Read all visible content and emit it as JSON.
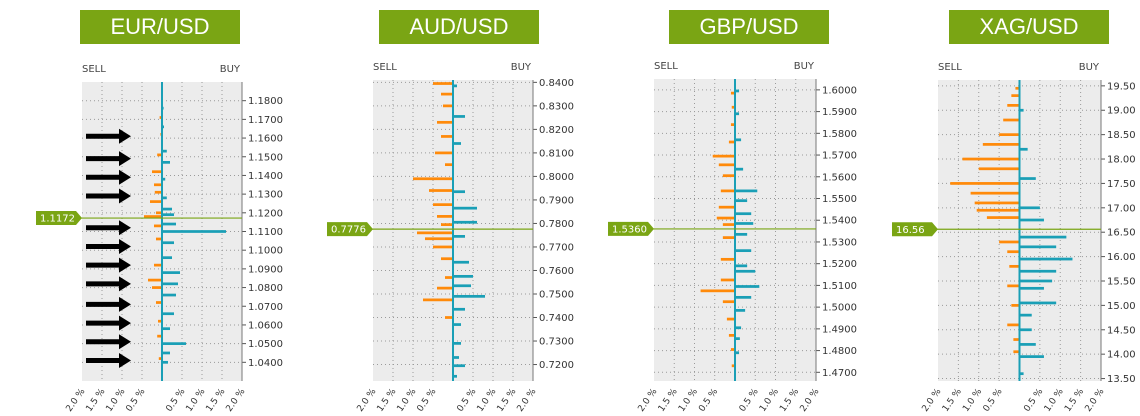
{
  "colors": {
    "buy": "#1a9fb6",
    "sell": "#ff8a0a",
    "title_bg": "#7aa514",
    "price_line": "#7aa514",
    "plot_bg": "#ececec"
  },
  "chart_data": [
    {
      "type": "bar",
      "title": "EUR/USD",
      "sell_label": "SELL",
      "buy_label": "BUY",
      "current_price": 1.1172,
      "current_price_label": "1.1172",
      "x_ticks": [
        "2.0 %",
        "1.5 %",
        "1.0 %",
        "0.5 %",
        "",
        "0.5 %",
        "1.0 %",
        "1.5 %",
        "2.0 %"
      ],
      "xlim": [
        -2.0,
        2.0
      ],
      "ylim": [
        1.03,
        1.19
      ],
      "y_ticks": [
        1.18,
        1.17,
        1.16,
        1.15,
        1.14,
        1.13,
        1.12,
        1.11,
        1.1,
        1.09,
        1.08,
        1.07,
        1.06,
        1.05,
        1.04
      ],
      "y_tick_labels": [
        "1.1800",
        "1.1700",
        "1.1600",
        "1.1500",
        "1.1400",
        "1.1300",
        "1.1200",
        "1.1100",
        "1.1000",
        "1.0900",
        "1.0800",
        "1.0700",
        "1.0600",
        "1.0500",
        "1.0400"
      ],
      "grid": true,
      "annotations": [
        "arrows pointing at support/resistance levels"
      ],
      "arrow_levels": [
        1.161,
        1.149,
        1.139,
        1.129,
        1.112,
        1.102,
        1.092,
        1.082,
        1.071,
        1.061,
        1.051,
        1.041
      ],
      "series": [
        {
          "side": "sell",
          "bars": [
            [
              1.171,
              0.06
            ],
            [
              1.162,
              0.04
            ],
            [
              1.151,
              0.12
            ],
            [
              1.142,
              0.25
            ],
            [
              1.135,
              0.2
            ],
            [
              1.131,
              0.18
            ],
            [
              1.126,
              0.3
            ],
            [
              1.12,
              0.15
            ],
            [
              1.118,
              0.45
            ]
          ]
        },
        {
          "side": "buy",
          "bars": [
            [
              1.176,
              0.04
            ],
            [
              1.166,
              0.05
            ],
            [
              1.153,
              0.12
            ],
            [
              1.147,
              0.2
            ],
            [
              1.138,
              0.08
            ],
            [
              1.128,
              0.12
            ],
            [
              1.122,
              0.25
            ],
            [
              1.119,
              0.3
            ]
          ]
        },
        {
          "side": "buy",
          "bars": [
            [
              1.114,
              0.35
            ],
            [
              1.11,
              1.6
            ],
            [
              1.104,
              0.3
            ],
            [
              1.096,
              0.25
            ],
            [
              1.088,
              0.45
            ],
            [
              1.082,
              0.4
            ],
            [
              1.076,
              0.35
            ],
            [
              1.066,
              0.3
            ],
            [
              1.058,
              0.2
            ],
            [
              1.05,
              0.6
            ],
            [
              1.045,
              0.2
            ],
            [
              1.04,
              0.15
            ]
          ]
        },
        {
          "side": "sell",
          "bars": [
            [
              1.113,
              0.2
            ],
            [
              1.106,
              0.15
            ],
            [
              1.092,
              0.2
            ],
            [
              1.084,
              0.35
            ],
            [
              1.08,
              0.25
            ],
            [
              1.072,
              0.15
            ],
            [
              1.062,
              0.1
            ],
            [
              1.054,
              0.12
            ],
            [
              1.042,
              0.08
            ]
          ]
        }
      ]
    },
    {
      "type": "bar",
      "title": "AUD/USD",
      "sell_label": "SELL",
      "buy_label": "BUY",
      "current_price": 0.7776,
      "current_price_label": "0.7776",
      "x_ticks": [
        "2.0 %",
        "1.5 %",
        "1.0 %",
        "0.5 %",
        "",
        "0.5 %",
        "1.0 %",
        "1.5 %",
        "2.0 %"
      ],
      "xlim": [
        -2.0,
        2.0
      ],
      "ylim": [
        0.713,
        0.841
      ],
      "y_ticks": [
        0.84,
        0.83,
        0.82,
        0.81,
        0.8,
        0.79,
        0.78,
        0.77,
        0.76,
        0.75,
        0.74,
        0.73,
        0.72
      ],
      "y_tick_labels": [
        "0.8400",
        "0.8300",
        "0.8200",
        "0.8100",
        "0.8000",
        "0.7900",
        "0.7800",
        "0.7700",
        "0.7600",
        "0.7500",
        "0.7400",
        "0.7300",
        "0.7200"
      ],
      "grid": true,
      "series": [
        {
          "side": "sell",
          "bars": [
            [
              0.8395,
              0.5
            ],
            [
              0.835,
              0.3
            ],
            [
              0.83,
              0.25
            ],
            [
              0.823,
              0.4
            ],
            [
              0.817,
              0.3
            ],
            [
              0.81,
              0.45
            ],
            [
              0.805,
              0.2
            ],
            [
              0.799,
              1.0
            ],
            [
              0.794,
              0.6
            ],
            [
              0.788,
              0.5
            ],
            [
              0.783,
              0.4
            ],
            [
              0.7795,
              0.3
            ]
          ]
        },
        {
          "side": "buy",
          "bars": [
            [
              0.8385,
              0.1
            ],
            [
              0.8255,
              0.3
            ],
            [
              0.814,
              0.2
            ],
            [
              0.7935,
              0.3
            ],
            [
              0.7865,
              0.6
            ],
            [
              0.7805,
              0.6
            ]
          ]
        },
        {
          "side": "sell",
          "bars": [
            [
              0.776,
              0.9
            ],
            [
              0.7735,
              0.7
            ],
            [
              0.77,
              0.5
            ],
            [
              0.765,
              0.3
            ],
            [
              0.757,
              0.2
            ],
            [
              0.7525,
              0.4
            ],
            [
              0.7475,
              0.75
            ],
            [
              0.74,
              0.2
            ]
          ]
        },
        {
          "side": "buy",
          "bars": [
            [
              0.7745,
              0.3
            ],
            [
              0.7635,
              0.4
            ],
            [
              0.7575,
              0.5
            ],
            [
              0.7535,
              0.45
            ],
            [
              0.749,
              0.8
            ],
            [
              0.7435,
              0.3
            ],
            [
              0.737,
              0.2
            ],
            [
              0.729,
              0.2
            ],
            [
              0.723,
              0.15
            ],
            [
              0.7195,
              0.3
            ],
            [
              0.715,
              0.1
            ]
          ]
        }
      ]
    },
    {
      "type": "bar",
      "title": "GBP/USD",
      "sell_label": "SELL",
      "buy_label": "BUY",
      "current_price": 1.536,
      "current_price_label": "1.5360",
      "x_ticks": [
        "2.0 %",
        "1.5 %",
        "1.0 %",
        "0.5 %",
        "",
        "0.5 %",
        "1.0 %",
        "1.5 %",
        "2.0 %"
      ],
      "xlim": [
        -2.0,
        2.0
      ],
      "ylim": [
        1.466,
        1.605
      ],
      "y_ticks": [
        1.6,
        1.59,
        1.58,
        1.57,
        1.56,
        1.55,
        1.54,
        1.53,
        1.52,
        1.51,
        1.5,
        1.49,
        1.48,
        1.47
      ],
      "y_tick_labels": [
        "1.6000",
        "1.5900",
        "1.5800",
        "1.5700",
        "1.5600",
        "1.5500",
        "1.5400",
        "1.5300",
        "1.5200",
        "1.5100",
        "1.5000",
        "1.4900",
        "1.4800",
        "1.4700"
      ],
      "grid": true,
      "series": [
        {
          "side": "sell",
          "bars": [
            [
              1.5985,
              0.1
            ],
            [
              1.592,
              0.08
            ],
            [
              1.584,
              0.1
            ],
            [
              1.576,
              0.15
            ],
            [
              1.5695,
              0.55
            ],
            [
              1.5655,
              0.4
            ],
            [
              1.5605,
              0.3
            ],
            [
              1.5535,
              0.35
            ],
            [
              1.546,
              0.4
            ],
            [
              1.541,
              0.45
            ],
            [
              1.538,
              0.3
            ]
          ]
        },
        {
          "side": "buy",
          "bars": [
            [
              1.5995,
              0.1
            ],
            [
              1.589,
              0.1
            ],
            [
              1.577,
              0.15
            ],
            [
              1.5635,
              0.2
            ],
            [
              1.5535,
              0.55
            ],
            [
              1.549,
              0.3
            ],
            [
              1.543,
              0.4
            ],
            [
              1.5385,
              0.45
            ]
          ]
        },
        {
          "side": "buy",
          "bars": [
            [
              1.5335,
              0.3
            ],
            [
              1.526,
              0.4
            ],
            [
              1.519,
              0.3
            ],
            [
              1.5165,
              0.5
            ],
            [
              1.5095,
              0.6
            ],
            [
              1.5045,
              0.4
            ],
            [
              1.4985,
              0.25
            ],
            [
              1.4905,
              0.15
            ],
            [
              1.4855,
              0.12
            ],
            [
              1.479,
              0.1
            ]
          ]
        },
        {
          "side": "sell",
          "bars": [
            [
              1.532,
              0.3
            ],
            [
              1.522,
              0.35
            ],
            [
              1.5125,
              0.35
            ],
            [
              1.5075,
              0.85
            ],
            [
              1.5025,
              0.3
            ],
            [
              1.4945,
              0.2
            ],
            [
              1.487,
              0.15
            ],
            [
              1.4805,
              0.1
            ],
            [
              1.473,
              0.08
            ]
          ]
        }
      ]
    },
    {
      "type": "bar",
      "title": "XAG/USD",
      "sell_label": "SELL",
      "buy_label": "BUY",
      "current_price": 16.56,
      "current_price_label": "16.56",
      "x_ticks": [
        "2.0 %",
        "1.5 %",
        "1.0 %",
        "0.5 %",
        "",
        "0.5 %",
        "1.0 %",
        "1.5 %",
        "2.0 %"
      ],
      "xlim": [
        -2.0,
        2.0
      ],
      "ylim": [
        13.45,
        19.62
      ],
      "y_ticks": [
        19.5,
        19.0,
        18.5,
        18.0,
        17.5,
        17.0,
        16.5,
        16.0,
        15.5,
        15.0,
        14.5,
        14.0,
        13.5
      ],
      "y_tick_labels": [
        "19.50",
        "19.00",
        "18.50",
        "18.00",
        "17.50",
        "17.00",
        "16.50",
        "16.00",
        "15.50",
        "15.00",
        "14.50",
        "14.00",
        "13.50"
      ],
      "grid": true,
      "series": [
        {
          "side": "sell",
          "bars": [
            [
              19.45,
              0.1
            ],
            [
              19.3,
              0.2
            ],
            [
              19.1,
              0.3
            ],
            [
              18.8,
              0.4
            ],
            [
              18.5,
              0.5
            ],
            [
              18.3,
              0.9
            ],
            [
              18.0,
              1.4
            ],
            [
              17.8,
              1.0
            ],
            [
              17.5,
              1.7
            ],
            [
              17.3,
              1.2
            ],
            [
              17.1,
              1.1
            ],
            [
              16.95,
              1.05
            ],
            [
              16.8,
              0.8
            ]
          ]
        },
        {
          "side": "buy",
          "bars": [
            [
              19.0,
              0.1
            ],
            [
              18.2,
              0.2
            ],
            [
              17.6,
              0.4
            ],
            [
              17.0,
              0.5
            ],
            [
              16.75,
              0.6
            ]
          ]
        },
        {
          "side": "buy",
          "bars": [
            [
              16.4,
              1.15
            ],
            [
              16.2,
              0.9
            ],
            [
              15.95,
              1.3
            ],
            [
              15.7,
              0.9
            ],
            [
              15.5,
              0.8
            ],
            [
              15.35,
              0.6
            ],
            [
              15.05,
              0.9
            ],
            [
              14.8,
              0.3
            ],
            [
              14.5,
              0.3
            ],
            [
              14.2,
              0.4
            ],
            [
              13.95,
              0.6
            ],
            [
              13.6,
              0.1
            ]
          ]
        },
        {
          "side": "sell",
          "bars": [
            [
              16.3,
              0.5
            ],
            [
              16.1,
              0.3
            ],
            [
              15.8,
              0.25
            ],
            [
              15.4,
              0.3
            ],
            [
              15.0,
              0.2
            ],
            [
              14.6,
              0.3
            ],
            [
              14.3,
              0.15
            ],
            [
              14.05,
              0.15
            ]
          ]
        }
      ]
    }
  ]
}
